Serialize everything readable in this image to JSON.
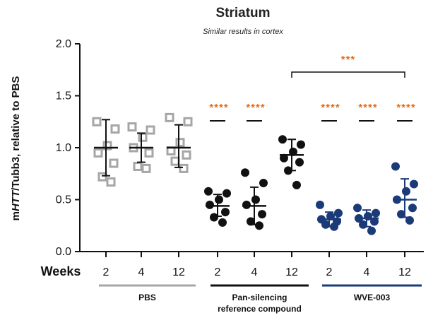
{
  "chart_data": {
    "type": "scatter",
    "title": "Striatum",
    "subtitle": "Similar results in cortex",
    "ylabel_prefix": "m",
    "ylabel_gene": "HTT",
    "ylabel_suffix": "/Tubb3, relative to PBS",
    "ylim": [
      0.0,
      2.0
    ],
    "yticks": [
      "0.0",
      "0.5",
      "1.0",
      "1.5",
      "2.0"
    ],
    "x_row_label": "Weeks",
    "categories": [
      "2",
      "4",
      "12",
      "2",
      "4",
      "12",
      "2",
      "4",
      "12"
    ],
    "colors": {
      "PBS": "#a6a6a6",
      "Pan": "#111111",
      "WVE": "#1a3a78",
      "sig": "#e07020"
    },
    "groups": [
      {
        "label": "PBS",
        "color": "#a6a6a6",
        "columns": [
          0,
          1,
          2
        ]
      },
      {
        "label": "Pan-silencing reference compound",
        "label_line1": "Pan-silencing",
        "label_line2": "reference compound",
        "color": "#111111",
        "columns": [
          3,
          4,
          5
        ]
      },
      {
        "label": "WVE-003",
        "color": "#1a3a78",
        "columns": [
          6,
          7,
          8
        ]
      }
    ],
    "series": [
      {
        "group": "PBS",
        "week": "2",
        "marker": "open-square",
        "mean": 1.0,
        "sd_low": 0.73,
        "sd_high": 1.27,
        "points": [
          1.25,
          1.18,
          1.02,
          0.95,
          0.85,
          0.72,
          0.67
        ]
      },
      {
        "group": "PBS",
        "week": "4",
        "marker": "open-square",
        "mean": 1.0,
        "sd_low": 0.86,
        "sd_high": 1.14,
        "points": [
          1.2,
          1.17,
          1.1,
          1.0,
          0.95,
          0.82,
          0.8
        ]
      },
      {
        "group": "PBS",
        "week": "12",
        "marker": "open-square",
        "mean": 1.0,
        "sd_low": 0.81,
        "sd_high": 1.22,
        "points": [
          1.29,
          1.25,
          1.05,
          0.97,
          0.93,
          0.87,
          0.8
        ]
      },
      {
        "group": "Pan",
        "week": "2",
        "marker": "filled-circle",
        "mean": 0.44,
        "sd_low": 0.34,
        "sd_high": 0.55,
        "points": [
          0.58,
          0.56,
          0.5,
          0.45,
          0.38,
          0.33,
          0.28
        ]
      },
      {
        "group": "Pan",
        "week": "4",
        "marker": "filled-circle",
        "mean": 0.44,
        "sd_low": 0.26,
        "sd_high": 0.62,
        "points": [
          0.76,
          0.66,
          0.5,
          0.45,
          0.36,
          0.29,
          0.25
        ]
      },
      {
        "group": "Pan",
        "week": "12",
        "marker": "filled-circle",
        "mean": 0.93,
        "sd_low": 0.78,
        "sd_high": 1.08,
        "points": [
          1.08,
          1.03,
          0.96,
          0.9,
          0.86,
          0.78,
          0.64
        ]
      },
      {
        "group": "WVE",
        "week": "2",
        "marker": "filled-circle",
        "mean": 0.31,
        "sd_low": 0.24,
        "sd_high": 0.38,
        "points": [
          0.45,
          0.37,
          0.34,
          0.31,
          0.29,
          0.26,
          0.24
        ]
      },
      {
        "group": "WVE",
        "week": "4",
        "marker": "filled-circle",
        "mean": 0.32,
        "sd_low": 0.24,
        "sd_high": 0.4,
        "points": [
          0.42,
          0.37,
          0.34,
          0.32,
          0.29,
          0.26,
          0.2
        ]
      },
      {
        "group": "WVE",
        "week": "12",
        "marker": "filled-circle",
        "mean": 0.5,
        "sd_low": 0.33,
        "sd_high": 0.7,
        "points": [
          0.82,
          0.65,
          0.58,
          0.5,
          0.42,
          0.36,
          0.3
        ]
      }
    ],
    "significance": [
      {
        "text": "****",
        "column": 3
      },
      {
        "text": "****",
        "column": 4
      },
      {
        "text": "****",
        "column": 6
      },
      {
        "text": "****",
        "column": 7
      },
      {
        "text": "****",
        "column": 8
      }
    ],
    "bracket": {
      "text": "***",
      "from_column": 5,
      "to_column": 8
    }
  }
}
